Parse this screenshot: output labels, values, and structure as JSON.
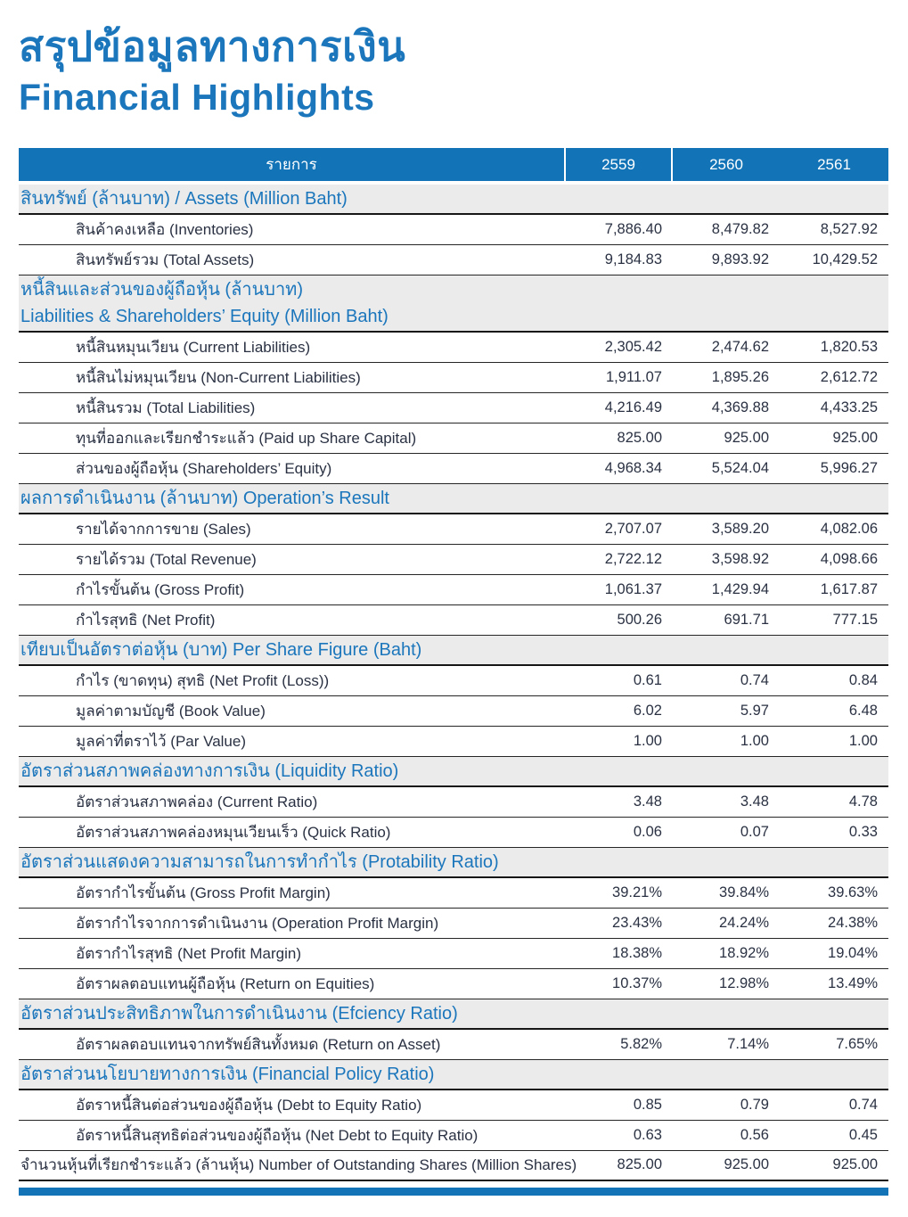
{
  "page_title": {
    "thai": "สรุปข้อมูลทางการเงิน",
    "english": "Financial Highlights"
  },
  "colors": {
    "accent_blue": "#1274b7",
    "section_band_gray": "#ebebeb",
    "body_text": "#2a3142",
    "header_text": "#ffffff"
  },
  "table": {
    "item_column_header": "รายการ",
    "year_columns": [
      "2559",
      "2560",
      "2561"
    ],
    "sections": [
      {
        "title_lines": [
          "สินทรัพย์ (ล้านบาท) / Assets (Million Baht)"
        ],
        "rows": [
          {
            "label": "สินค้าคงเหลือ (Inventories)",
            "values": [
              "7,886.40",
              "8,479.82",
              "8,527.92"
            ]
          },
          {
            "label": "สินทรัพย์รวม (Total Assets)",
            "values": [
              "9,184.83",
              "9,893.92",
              "10,429.52"
            ]
          }
        ]
      },
      {
        "title_lines": [
          "หนี้สินและส่วนของผู้ถือหุ้น (ล้านบาท)",
          "Liabilities & Shareholders’ Equity (Million Baht)"
        ],
        "rows": [
          {
            "label": "หนี้สินหมุนเวียน (Current Liabilities)",
            "values": [
              "2,305.42",
              "2,474.62",
              "1,820.53"
            ]
          },
          {
            "label": "หนี้สินไม่หมุนเวียน  (Non-Current Liabilities)",
            "values": [
              "1,911.07",
              "1,895.26",
              "2,612.72"
            ]
          },
          {
            "label": "หนี้สินรวม (Total Liabilities)",
            "values": [
              "4,216.49",
              "4,369.88",
              "4,433.25"
            ]
          },
          {
            "label": "ทุนที่ออกและเรียกชำระแล้ว (Paid up Share Capital)",
            "values": [
              "825.00",
              "925.00",
              "925.00"
            ]
          },
          {
            "label": "ส่วนของผู้ถือหุ้น (Shareholders’ Equity)",
            "values": [
              "4,968.34",
              "5,524.04",
              "5,996.27"
            ]
          }
        ]
      },
      {
        "title_lines": [
          "ผลการดำเนินงาน (ล้านบาท) Operation’s Result"
        ],
        "rows": [
          {
            "label": "รายได้จากการขาย (Sales)",
            "values": [
              "2,707.07",
              "3,589.20",
              "4,082.06"
            ]
          },
          {
            "label": "รายได้รวม (Total Revenue)",
            "values": [
              "2,722.12",
              "3,598.92",
              "4,098.66"
            ]
          },
          {
            "label": "กำไรขั้นต้น (Gross Profit)",
            "values": [
              "1,061.37",
              "1,429.94",
              "1,617.87"
            ]
          },
          {
            "label": "กำไรสุทธิ (Net Profit)",
            "values": [
              "500.26",
              "691.71",
              "777.15"
            ]
          }
        ]
      },
      {
        "title_lines": [
          "เทียบเป็นอัตราต่อหุ้น (บาท)  Per Share Figure (Baht)"
        ],
        "rows": [
          {
            "label": "กำไร (ขาดทุน) สุทธิ  (Net Profit (Loss))",
            "values": [
              "0.61",
              "0.74",
              "0.84"
            ]
          },
          {
            "label": "มูลค่าตามบัญชี (Book Value)",
            "values": [
              "6.02",
              "5.97",
              "6.48"
            ]
          },
          {
            "label": "มูลค่าที่ตราไว้ (Par Value)",
            "values": [
              "1.00",
              "1.00",
              "1.00"
            ]
          }
        ]
      },
      {
        "title_lines": [
          "อัตราส่วนสภาพคล่องทางการเงิน (Liquidity Ratio)"
        ],
        "rows": [
          {
            "label": "อัตราส่วนสภาพคล่อง (Current Ratio)",
            "values": [
              "3.48",
              "3.48",
              "4.78"
            ]
          },
          {
            "label": "อัตราส่วนสภาพคล่องหมุนเวียนเร็ว (Quick Ratio)",
            "values": [
              "0.06",
              "0.07",
              "0.33"
            ]
          }
        ]
      },
      {
        "title_lines": [
          "อัตราส่วนแสดงความสามารถในการทำกำไร  (Protability Ratio)"
        ],
        "rows": [
          {
            "label": "อัตรากำไรขั้นต้น (Gross Profit Margin)",
            "values": [
              "39.21%",
              "39.84%",
              "39.63%"
            ]
          },
          {
            "label": "อัตรากำไรจากการดำเนินงาน (Operation Profit Margin)",
            "values": [
              "23.43%",
              "24.24%",
              "24.38%"
            ]
          },
          {
            "label": "อัตรากำไรสุทธิ (Net Profit Margin)",
            "values": [
              "18.38%",
              "18.92%",
              "19.04%"
            ]
          },
          {
            "label": "อัตราผลตอบแทนผู้ถือหุ้น (Return on Equities)",
            "values": [
              "10.37%",
              "12.98%",
              "13.49%"
            ]
          }
        ]
      },
      {
        "title_lines": [
          "อัตราส่วนประสิทธิภาพในการดำเนินงาน (Efciency Ratio)"
        ],
        "rows": [
          {
            "label": "อัตราผลตอบแทนจากทรัพย์สินทั้งหมด (Return on Asset)",
            "values": [
              "5.82%",
              "7.14%",
              "7.65%"
            ]
          }
        ]
      },
      {
        "title_lines": [
          "อัตราส่วนนโยบายทางการเงิน  (Financial Policy Ratio)"
        ],
        "rows": [
          {
            "label": "อัตราหนี้สินต่อส่วนของผู้ถือหุ้น  (Debt to Equity Ratio)",
            "values": [
              "0.85",
              "0.79",
              "0.74"
            ]
          },
          {
            "label": "อัตราหนี้สินสุทธิต่อส่วนของผู้ถือหุ้น (Net Debt to Equity Ratio)",
            "values": [
              "0.63",
              "0.56",
              "0.45"
            ]
          }
        ]
      }
    ],
    "footer_row": {
      "label": "จำนวนหุ้นที่เรียกชำระแล้ว (ล้านหุ้น) Number of Outstanding Shares (Million Shares)",
      "values": [
        "825.00",
        "925.00",
        "925.00"
      ]
    }
  }
}
